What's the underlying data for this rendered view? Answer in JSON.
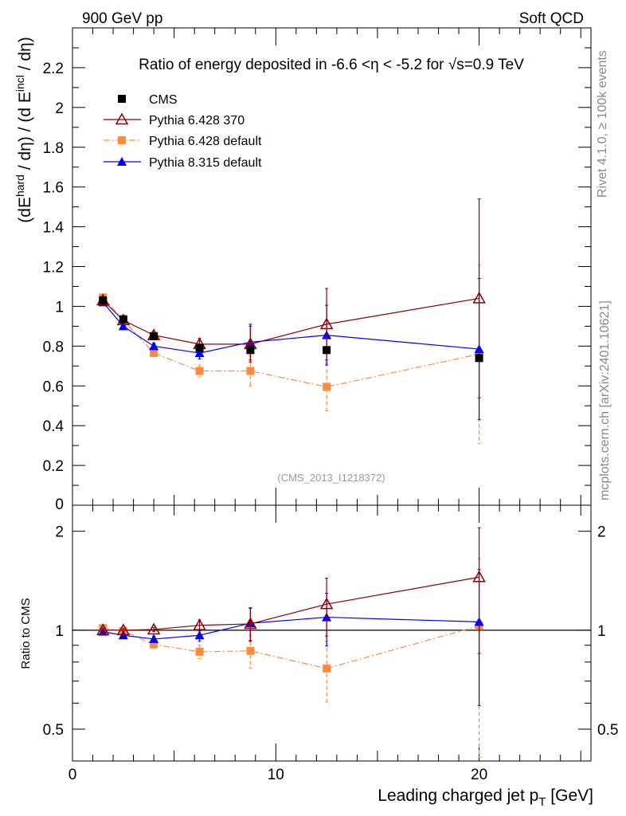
{
  "header": {
    "left": "900 GeV pp",
    "right": "Soft QCD"
  },
  "side_labels": {
    "rivet": "Rivet 4.1.0, ≥ 100k events",
    "mcplots": "mcplots.cern.ch [arXiv:2401.10621]"
  },
  "chart_data": [
    {
      "type": "line",
      "title": "Ratio of energy deposited in -6.6 <η < -5.2 for √s=0.9 TeV",
      "ylabel": "(dE^hard / dη) / (d E^incl / dη)",
      "xlabel": "Leading charged jet p_T [GeV]",
      "watermark": "(CMS_2013_I1218372)",
      "xlim": [
        0,
        25.5
      ],
      "ylim": [
        0,
        2.4
      ],
      "yticks": [
        "0",
        "0.2",
        "0.4",
        "0.6",
        "0.8",
        "1",
        "1.2",
        "1.4",
        "1.6",
        "1.8",
        "2",
        "2.2"
      ],
      "legend_position": "top-left",
      "series": [
        {
          "name": "CMS",
          "color": "#000000",
          "marker": "square",
          "x": [
            1.5,
            2.5,
            4.0,
            6.25,
            8.75,
            12.5,
            20.0
          ],
          "y": [
            1.03,
            0.935,
            0.85,
            0.79,
            0.78,
            0.78,
            0.74
          ],
          "err": [
            0.0,
            0.0,
            0.0,
            0.0,
            0.0,
            0.0,
            0.0
          ]
        },
        {
          "name": "Pythia 6.428 370",
          "color": "#8b0000",
          "marker": "open-triangle",
          "x": [
            1.5,
            2.5,
            4.0,
            6.25,
            8.75,
            12.5,
            20.0
          ],
          "y": [
            1.03,
            0.93,
            0.855,
            0.81,
            0.81,
            0.91,
            1.04
          ],
          "err": [
            0.01,
            0.01,
            0.015,
            0.03,
            0.09,
            0.18,
            0.5
          ]
        },
        {
          "name": "Pythia 6.428 default",
          "color": "#ff8c3c",
          "marker": "square",
          "x": [
            1.5,
            2.5,
            4.0,
            6.25,
            8.75,
            12.5,
            20.0
          ],
          "y": [
            1.045,
            0.93,
            0.765,
            0.675,
            0.675,
            0.595,
            0.76
          ],
          "err": [
            0.01,
            0.01,
            0.015,
            0.03,
            0.075,
            0.12,
            0.45
          ]
        },
        {
          "name": "Pythia 8.315 default",
          "color": "#0000ff",
          "marker": "triangle",
          "x": [
            1.5,
            2.5,
            4.0,
            6.25,
            8.75,
            12.5,
            20.0
          ],
          "y": [
            1.02,
            0.9,
            0.8,
            0.765,
            0.82,
            0.855,
            0.785
          ],
          "err": [
            0.01,
            0.01,
            0.015,
            0.03,
            0.09,
            0.15,
            0.355
          ]
        }
      ]
    },
    {
      "type": "line",
      "ylabel": "Ratio to CMS",
      "xlabel": "Leading charged jet p_T [GeV]",
      "yscale": "log",
      "xlim": [
        0,
        25.5
      ],
      "ylim": [
        0.4,
        2.4
      ],
      "xticks": [
        "0",
        "10",
        "20"
      ],
      "yticks": [
        "0.5",
        "1",
        "2"
      ],
      "reference_line": 1.0,
      "series": [
        {
          "name": "Pythia 6.428 370",
          "color": "#8b0000",
          "marker": "open-triangle",
          "x": [
            1.5,
            2.5,
            4.0,
            6.25,
            8.75,
            12.5,
            20.0
          ],
          "y": [
            1.0,
            1.0,
            1.005,
            1.035,
            1.045,
            1.2,
            1.45
          ],
          "err": [
            0.01,
            0.01,
            0.015,
            0.04,
            0.12,
            0.24,
            0.6
          ]
        },
        {
          "name": "Pythia 6.428 default",
          "color": "#ff8c3c",
          "marker": "square",
          "x": [
            1.5,
            2.5,
            4.0,
            6.25,
            8.75,
            12.5,
            20.0
          ],
          "y": [
            1.015,
            0.995,
            0.905,
            0.86,
            0.865,
            0.765,
            1.03
          ],
          "err": [
            0.01,
            0.01,
            0.02,
            0.04,
            0.1,
            0.16,
            0.62
          ]
        },
        {
          "name": "Pythia 8.315 default",
          "color": "#0000ff",
          "marker": "triangle",
          "x": [
            1.5,
            2.5,
            4.0,
            6.25,
            8.75,
            12.5,
            20.0
          ],
          "y": [
            0.99,
            0.965,
            0.94,
            0.965,
            1.05,
            1.095,
            1.06
          ],
          "err": [
            0.01,
            0.01,
            0.02,
            0.04,
            0.12,
            0.2,
            0.47
          ]
        }
      ]
    }
  ]
}
